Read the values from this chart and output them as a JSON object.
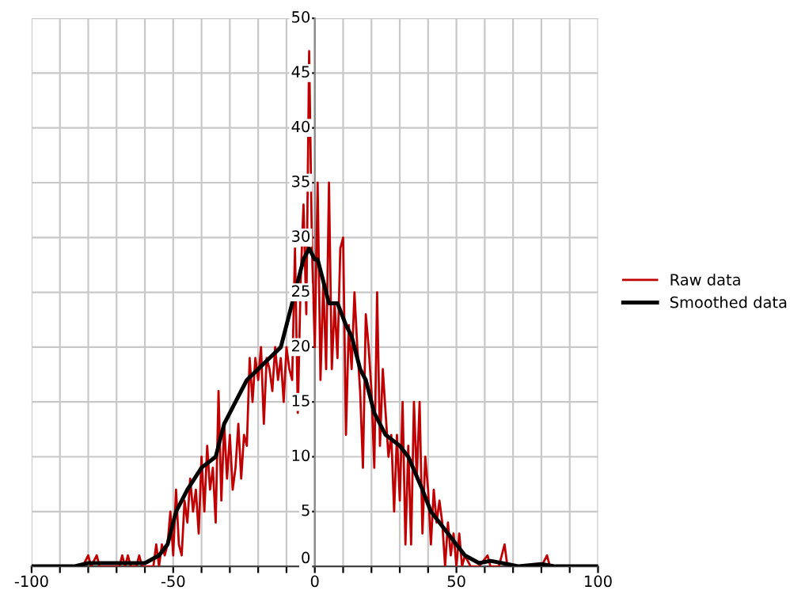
{
  "chart_data": {
    "type": "line",
    "series": [
      {
        "name": "Raw data",
        "color": "#c00000",
        "x": [
          -100,
          -82,
          -80,
          -79,
          -77,
          -76,
          -69,
          -68,
          -67,
          -66,
          -65,
          -63,
          -62,
          -61,
          -57,
          -56,
          -55,
          -54,
          -53,
          -52,
          -51,
          -50,
          -49,
          -48,
          -47,
          -46,
          -45,
          -44,
          -43,
          -42,
          -41,
          -40,
          -39,
          -38,
          -37,
          -36,
          -35,
          -34,
          -33,
          -32,
          -31,
          -30,
          -29,
          -28,
          -27,
          -26,
          -25,
          -24,
          -23,
          -22,
          -21,
          -20,
          -19,
          -18,
          -17,
          -16,
          -15,
          -14,
          -13,
          -12,
          -11,
          -10,
          -9,
          -8,
          -7,
          -6,
          -5,
          -4,
          -3,
          -2,
          -1,
          0,
          1,
          2,
          3,
          4,
          5,
          6,
          7,
          8,
          9,
          10,
          11,
          12,
          13,
          14,
          15,
          16,
          17,
          18,
          19,
          20,
          21,
          22,
          23,
          24,
          25,
          26,
          27,
          28,
          29,
          30,
          31,
          32,
          33,
          34,
          35,
          36,
          37,
          38,
          39,
          40,
          41,
          42,
          43,
          44,
          45,
          46,
          47,
          48,
          49,
          50,
          51,
          52,
          53,
          55,
          58,
          61,
          62,
          65,
          67,
          68,
          69,
          72,
          80,
          82,
          83,
          100
        ],
        "values": [
          0,
          0,
          1,
          0,
          1,
          0,
          0,
          1,
          0,
          1,
          0,
          0,
          1,
          0,
          0,
          2,
          0,
          2,
          1,
          2,
          5,
          1,
          7,
          2,
          1,
          6,
          4,
          8,
          5,
          7,
          3,
          10,
          5,
          11,
          7,
          9,
          4,
          16,
          6,
          13,
          8,
          12,
          7,
          9,
          13,
          8,
          12,
          11,
          19,
          15,
          19,
          17,
          20,
          13,
          19,
          18,
          16,
          20,
          17,
          19,
          15,
          20,
          18,
          17,
          29,
          14,
          26,
          33,
          23,
          47,
          29,
          20,
          35,
          17,
          26,
          18,
          35,
          18,
          24,
          19,
          29,
          30,
          12,
          22,
          18,
          25,
          20,
          16,
          9,
          23,
          20,
          16,
          9,
          25,
          11,
          18,
          14,
          10,
          12,
          5,
          12,
          6,
          15,
          2,
          11,
          2,
          15,
          8,
          15,
          3,
          10,
          7,
          2,
          7,
          4,
          6,
          4,
          0,
          4,
          1,
          3,
          0,
          3,
          0,
          1,
          0,
          0,
          1,
          0,
          0,
          2,
          0,
          0,
          0,
          0,
          1,
          0,
          0
        ]
      },
      {
        "name": "Smoothed data",
        "color": "#000000",
        "x": [
          -100,
          -85,
          -80,
          -70,
          -60,
          -55,
          -52,
          -49,
          -45,
          -40,
          -35,
          -32,
          -28,
          -24,
          -20,
          -16,
          -12,
          -10,
          -7,
          -4,
          -2,
          0,
          1,
          3,
          5,
          8,
          11,
          13,
          16,
          18,
          21,
          25,
          30,
          33,
          38,
          41,
          47,
          53,
          58,
          62,
          68,
          72,
          80,
          85,
          100
        ],
        "values": [
          0,
          0,
          0.3,
          0.3,
          0.3,
          1,
          2,
          5,
          7,
          9,
          10,
          13,
          15,
          17,
          18,
          19,
          20,
          22,
          25,
          28,
          29,
          28,
          28,
          26,
          24,
          24,
          22,
          21,
          18,
          17,
          14,
          12,
          11,
          10,
          7,
          5,
          3,
          1,
          0.3,
          0.5,
          0.2,
          0,
          0.2,
          0,
          0
        ]
      }
    ],
    "xlim": [
      -100,
      100
    ],
    "xticks": [
      -100,
      {
        "value": -90,
        "label": null
      },
      {
        "value": -80,
        "label": null
      },
      {
        "value": -70,
        "label": null
      },
      {
        "value": -60,
        "label": null
      },
      -50,
      {
        "value": -40,
        "label": null
      },
      {
        "value": -30,
        "label": null
      },
      {
        "value": -20,
        "label": null
      },
      {
        "value": -10,
        "label": null
      },
      0,
      {
        "value": 10,
        "label": null
      },
      {
        "value": 20,
        "label": null
      },
      {
        "value": 30,
        "label": null
      },
      {
        "value": 40,
        "label": null
      },
      50,
      {
        "value": 60,
        "label": null
      },
      {
        "value": 70,
        "label": null
      },
      {
        "value": 80,
        "label": null
      },
      {
        "value": 90,
        "label": null
      },
      100
    ],
    "ylim": [
      0,
      50
    ],
    "yticks": [
      0,
      5,
      10,
      15,
      20,
      25,
      30,
      35,
      40,
      45,
      50
    ],
    "grid": true,
    "legend": "right",
    "marker": "none",
    "line_style": "solid"
  }
}
